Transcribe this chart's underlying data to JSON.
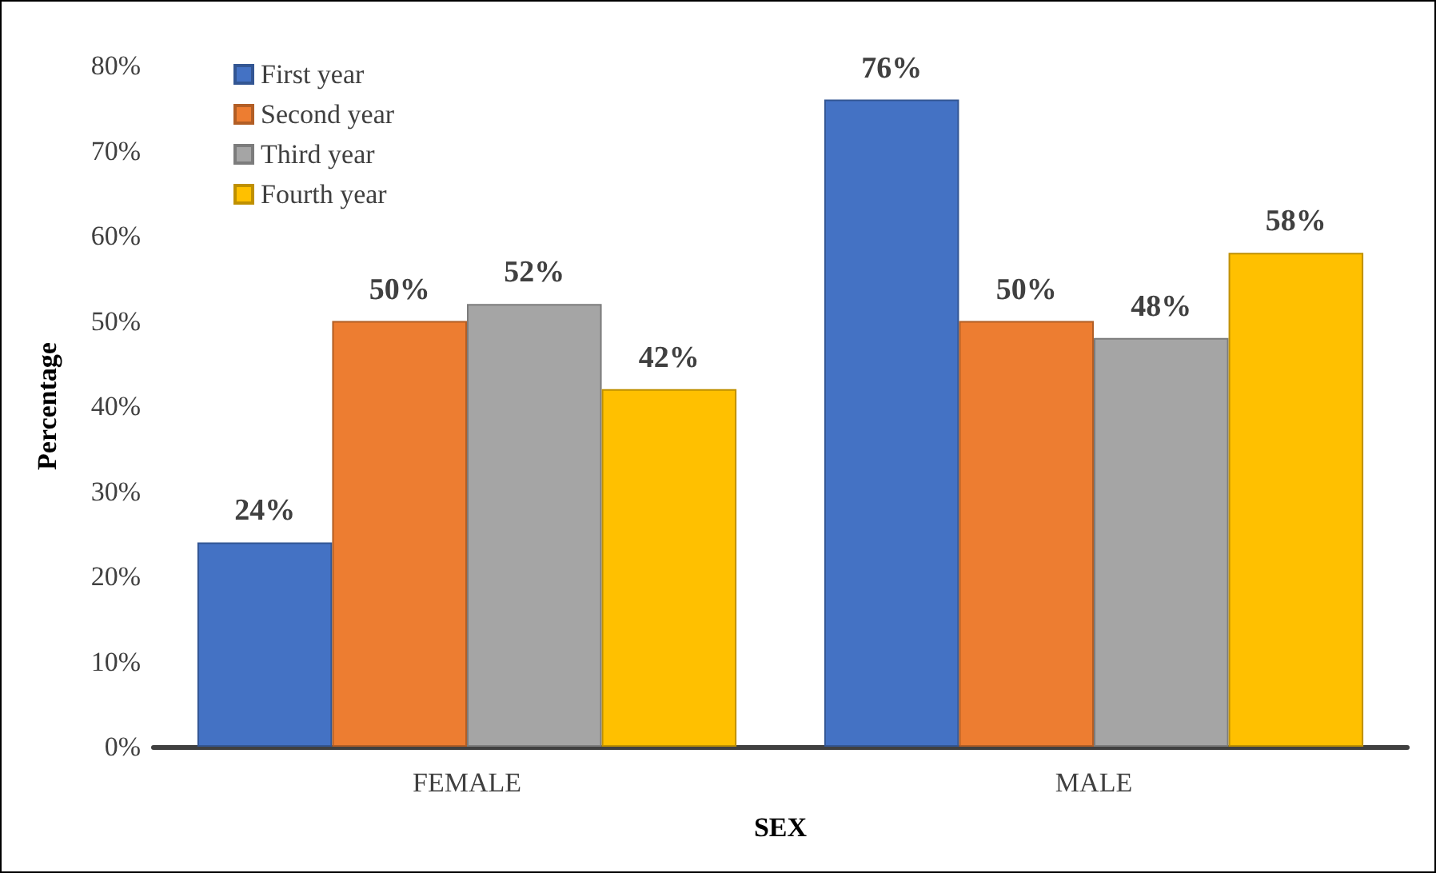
{
  "chart_data": {
    "type": "bar",
    "xlabel": "SEX",
    "ylabel": "Percentage",
    "categories": [
      "FEMALE",
      "MALE"
    ],
    "series": [
      {
        "name": "First year",
        "color": "#4472c4",
        "values": [
          24,
          76
        ],
        "value_labels": [
          "24%",
          "76%"
        ]
      },
      {
        "name": "Second year",
        "color": "#ed7d31",
        "values": [
          50,
          50
        ],
        "value_labels": [
          "50%",
          "50%"
        ]
      },
      {
        "name": "Third year",
        "color": "#a5a5a5",
        "values": [
          52,
          48
        ],
        "value_labels": [
          "52%",
          "48%"
        ]
      },
      {
        "name": "Fourth year",
        "color": "#ffc000",
        "values": [
          42,
          58
        ],
        "value_labels": [
          "42%",
          "58%"
        ]
      }
    ],
    "ylim": [
      0,
      80
    ],
    "yticks": [
      {
        "value": 0,
        "label": "0%"
      },
      {
        "value": 10,
        "label": "10%"
      },
      {
        "value": 20,
        "label": "20%"
      },
      {
        "value": 30,
        "label": "30%"
      },
      {
        "value": 40,
        "label": "40%"
      },
      {
        "value": 50,
        "label": "50%"
      },
      {
        "value": 60,
        "label": "60%"
      },
      {
        "value": 70,
        "label": "70%"
      },
      {
        "value": 80,
        "label": "80%"
      }
    ],
    "grid": false,
    "legend": "top left"
  }
}
